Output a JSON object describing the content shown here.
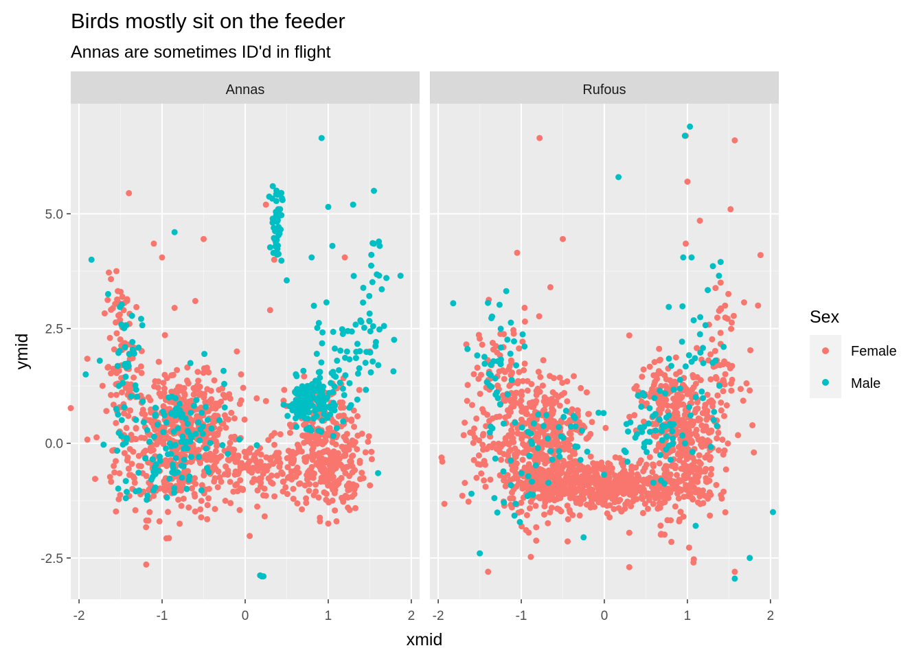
{
  "chart_data": {
    "type": "scatter",
    "title": "Birds mostly sit on the feeder",
    "subtitle": "Annas are sometimes ID'd in flight",
    "xlabel": "xmid",
    "ylabel": "ymid",
    "xlim": [
      -2.1,
      2.1
    ],
    "ylim": [
      -3.4,
      7.4
    ],
    "x_ticks": [
      -2,
      -1,
      0,
      1,
      2
    ],
    "x_tick_labels": [
      "-2",
      "-1",
      "0",
      "1",
      "2"
    ],
    "y_ticks": [
      -2.5,
      0,
      2.5,
      5
    ],
    "y_tick_labels": [
      "-2.5",
      "0.0",
      "2.5",
      "5.0"
    ],
    "grid": true,
    "legend": {
      "title": "Sex",
      "position": "right",
      "entries": [
        {
          "label": "Female",
          "color": "#F8766D"
        },
        {
          "label": "Male",
          "color": "#00BFC4"
        }
      ]
    },
    "panels": [
      {
        "name": "Annas",
        "series": [
          {
            "name": "Female",
            "color": "#F8766D",
            "clusters": [
              {
                "cx": -0.8,
                "cy": -0.1,
                "sx": 0.38,
                "sy": 0.75,
                "n": 420
              },
              {
                "cx": -0.65,
                "cy": 0.7,
                "sx": 0.25,
                "sy": 0.35,
                "n": 150
              },
              {
                "cx": 0.0,
                "cy": -0.6,
                "sx": 0.35,
                "sy": 0.3,
                "n": 90
              },
              {
                "cx": 1.0,
                "cy": -0.4,
                "sx": 0.22,
                "sy": 0.55,
                "n": 260
              },
              {
                "cx": 0.85,
                "cy": 0.8,
                "sx": 0.2,
                "sy": 0.3,
                "n": 80
              },
              {
                "cx": -1.45,
                "cy": 1.7,
                "sx": 0.12,
                "sy": 0.9,
                "n": 90
              },
              {
                "cx": 0.4,
                "cy": -0.5,
                "sx": 0.2,
                "sy": 0.3,
                "n": 50
              }
            ],
            "points": [
              [
                -1.4,
                5.45
              ],
              [
                -1.1,
                4.35
              ],
              [
                -1.0,
                4.05
              ],
              [
                -0.5,
                4.45
              ],
              [
                0.25,
                5.2
              ],
              [
                0.35,
                4.0
              ],
              [
                1.2,
                4.05
              ],
              [
                0.3,
                2.9
              ],
              [
                -0.1,
                2.0
              ],
              [
                -0.05,
                1.5
              ],
              [
                -0.85,
                2.95
              ],
              [
                -0.6,
                3.1
              ],
              [
                -1.55,
                3.75
              ],
              [
                -1.5,
                3.3
              ],
              [
                1.0,
                -1.75
              ],
              [
                1.1,
                -1.7
              ],
              [
                0.9,
                -1.7
              ],
              [
                -1.15,
                -1.5
              ],
              [
                0.6,
                0.4
              ],
              [
                1.5,
                2.0
              ]
            ]
          },
          {
            "name": "Male",
            "color": "#00BFC4",
            "clusters": [
              {
                "cx": 0.75,
                "cy": 0.9,
                "sx": 0.12,
                "sy": 0.25,
                "n": 130
              },
              {
                "cx": -0.75,
                "cy": 0.2,
                "sx": 0.3,
                "sy": 0.6,
                "n": 90
              },
              {
                "cx": 1.05,
                "cy": 1.5,
                "sx": 0.15,
                "sy": 0.6,
                "n": 50
              },
              {
                "cx": 0.38,
                "cy": 4.8,
                "sx": 0.03,
                "sy": 0.45,
                "n": 45
              },
              {
                "cx": -1.45,
                "cy": 1.5,
                "sx": 0.1,
                "sy": 1.0,
                "n": 40
              },
              {
                "cx": 1.45,
                "cy": 2.5,
                "sx": 0.12,
                "sy": 0.9,
                "n": 40
              },
              {
                "cx": -1.05,
                "cy": -0.9,
                "sx": 0.2,
                "sy": 0.3,
                "n": 30
              }
            ],
            "points": [
              [
                0.92,
                6.65
              ],
              [
                0.2,
                -2.9
              ],
              [
                0.18,
                -2.88
              ],
              [
                0.22,
                -2.9
              ],
              [
                -1.85,
                4.0
              ],
              [
                -1.92,
                1.5
              ],
              [
                -1.75,
                1.8
              ],
              [
                -1.65,
                3.25
              ],
              [
                -0.85,
                4.6
              ],
              [
                0.45,
                5.3
              ],
              [
                0.42,
                5.1
              ],
              [
                1.55,
                5.5
              ],
              [
                1.3,
                5.2
              ],
              [
                1.0,
                5.15
              ],
              [
                1.55,
                4.35
              ],
              [
                1.62,
                4.3
              ],
              [
                1.7,
                3.6
              ],
              [
                1.87,
                3.65
              ],
              [
                1.05,
                4.3
              ],
              [
                0.8,
                4.05
              ],
              [
                0.5,
                3.55
              ],
              [
                1.6,
                -0.65
              ]
            ]
          }
        ]
      },
      {
        "name": "Rufous",
        "series": [
          {
            "name": "Female",
            "color": "#F8766D",
            "clusters": [
              {
                "cx": -0.1,
                "cy": -0.9,
                "sx": 0.55,
                "sy": 0.28,
                "n": 550
              },
              {
                "cx": -0.85,
                "cy": -0.1,
                "sx": 0.18,
                "sy": 0.8,
                "n": 260
              },
              {
                "cx": -0.5,
                "cy": 0.45,
                "sx": 0.2,
                "sy": 0.45,
                "n": 120
              },
              {
                "cx": 0.95,
                "cy": -0.1,
                "sx": 0.2,
                "sy": 0.8,
                "n": 320
              },
              {
                "cx": 0.75,
                "cy": 0.9,
                "sx": 0.22,
                "sy": 0.35,
                "n": 100
              },
              {
                "cx": -1.2,
                "cy": 1.2,
                "sx": 0.18,
                "sy": 0.9,
                "n": 90
              },
              {
                "cx": 1.4,
                "cy": 1.6,
                "sx": 0.12,
                "sy": 0.7,
                "n": 70
              },
              {
                "cx": -1.5,
                "cy": 0.4,
                "sx": 0.1,
                "sy": 0.9,
                "n": 35
              }
            ],
            "points": [
              [
                -0.78,
                6.65
              ],
              [
                0.98,
                6.7
              ],
              [
                1.57,
                6.6
              ],
              [
                1.0,
                5.7
              ],
              [
                1.52,
                5.1
              ],
              [
                1.15,
                4.85
              ],
              [
                -0.5,
                4.45
              ],
              [
                -1.05,
                4.15
              ],
              [
                0.98,
                4.35
              ],
              [
                1.88,
                4.1
              ],
              [
                -0.65,
                3.4
              ],
              [
                1.85,
                3.0
              ],
              [
                1.4,
                3.5
              ],
              [
                -1.95,
                -0.4
              ],
              [
                -1.4,
                -2.8
              ],
              [
                0.3,
                -2.7
              ],
              [
                1.57,
                -2.8
              ],
              [
                0.3,
                -1.95
              ],
              [
                0.9,
                -1.7
              ],
              [
                1.8,
                -0.2
              ],
              [
                1.75,
                1.15
              ],
              [
                0.3,
                2.35
              ]
            ]
          },
          {
            "name": "Male",
            "color": "#00BFC4",
            "clusters": [
              {
                "cx": 0.6,
                "cy": 0.3,
                "sx": 0.25,
                "sy": 0.5,
                "n": 60
              },
              {
                "cx": -0.6,
                "cy": 0.1,
                "sx": 0.3,
                "sy": 0.4,
                "n": 35
              },
              {
                "cx": -1.3,
                "cy": 1.7,
                "sx": 0.15,
                "sy": 0.8,
                "n": 40
              },
              {
                "cx": 1.1,
                "cy": 1.5,
                "sx": 0.2,
                "sy": 1.0,
                "n": 30
              },
              {
                "cx": -1.05,
                "cy": -1.1,
                "sx": 0.15,
                "sy": 0.4,
                "n": 15
              }
            ],
            "points": [
              [
                1.03,
                6.9
              ],
              [
                0.97,
                6.7
              ],
              [
                0.17,
                5.8
              ],
              [
                -1.82,
                3.05
              ],
              [
                1.4,
                3.95
              ],
              [
                1.38,
                3.65
              ],
              [
                0.95,
                4.05
              ],
              [
                1.05,
                4.05
              ],
              [
                -1.5,
                -2.4
              ],
              [
                1.75,
                -2.5
              ],
              [
                1.57,
                -2.95
              ],
              [
                2.03,
                -1.5
              ],
              [
                1.1,
                -1.8
              ],
              [
                -0.25,
                -2.05
              ],
              [
                -1.6,
                -1.1
              ]
            ]
          }
        ]
      }
    ]
  }
}
